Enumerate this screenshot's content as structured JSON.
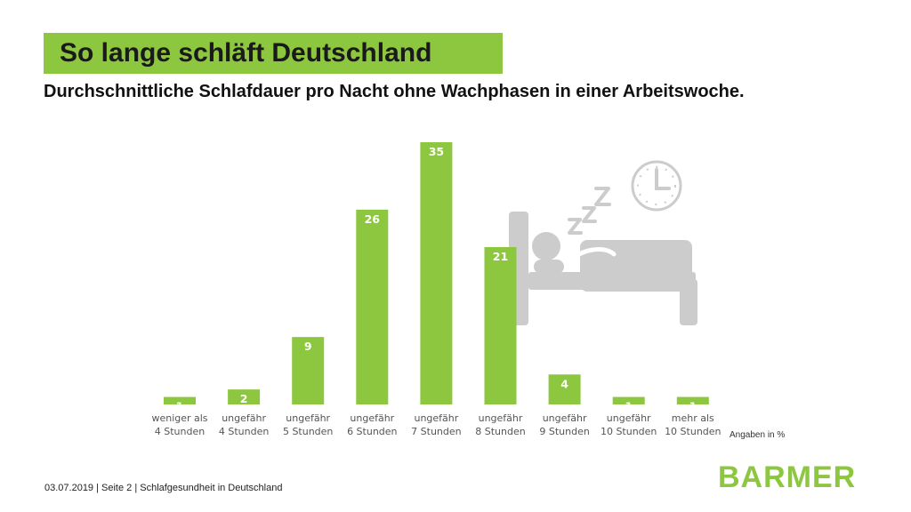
{
  "header": {
    "title": "So lange schläft Deutschland",
    "subtitle": "Durchschnittliche Schlafdauer pro Nacht ohne Wachphasen in einer Arbeitswoche."
  },
  "note": "Angaben in %",
  "footer": "03.07.2019 | Seite 2 | Schlafgesundheit in Deutschland",
  "logo": "BARMER",
  "colors": {
    "accent": "#8dc63f",
    "icon": "#cccccc"
  },
  "illustration": {
    "icons": [
      "bed-icon",
      "sleeping-person-icon",
      "zzz-icon",
      "clock-icon"
    ]
  },
  "chart_data": {
    "type": "bar",
    "categories": [
      [
        "weniger als",
        "4 Stunden"
      ],
      [
        "ungefähr",
        "4 Stunden"
      ],
      [
        "ungefähr",
        "5 Stunden"
      ],
      [
        "ungefähr",
        "6 Stunden"
      ],
      [
        "ungefähr",
        "7 Stunden"
      ],
      [
        "ungefähr",
        "8 Stunden"
      ],
      [
        "ungefähr",
        "9 Stunden"
      ],
      [
        "ungefähr",
        "10 Stunden"
      ],
      [
        "mehr als",
        "10 Stunden"
      ]
    ],
    "values": [
      1,
      2,
      9,
      26,
      35,
      21,
      4,
      1,
      1
    ],
    "title": "",
    "xlabel": "",
    "ylabel": "",
    "ylim": [
      0,
      35
    ],
    "grid": false,
    "legend": "none"
  }
}
